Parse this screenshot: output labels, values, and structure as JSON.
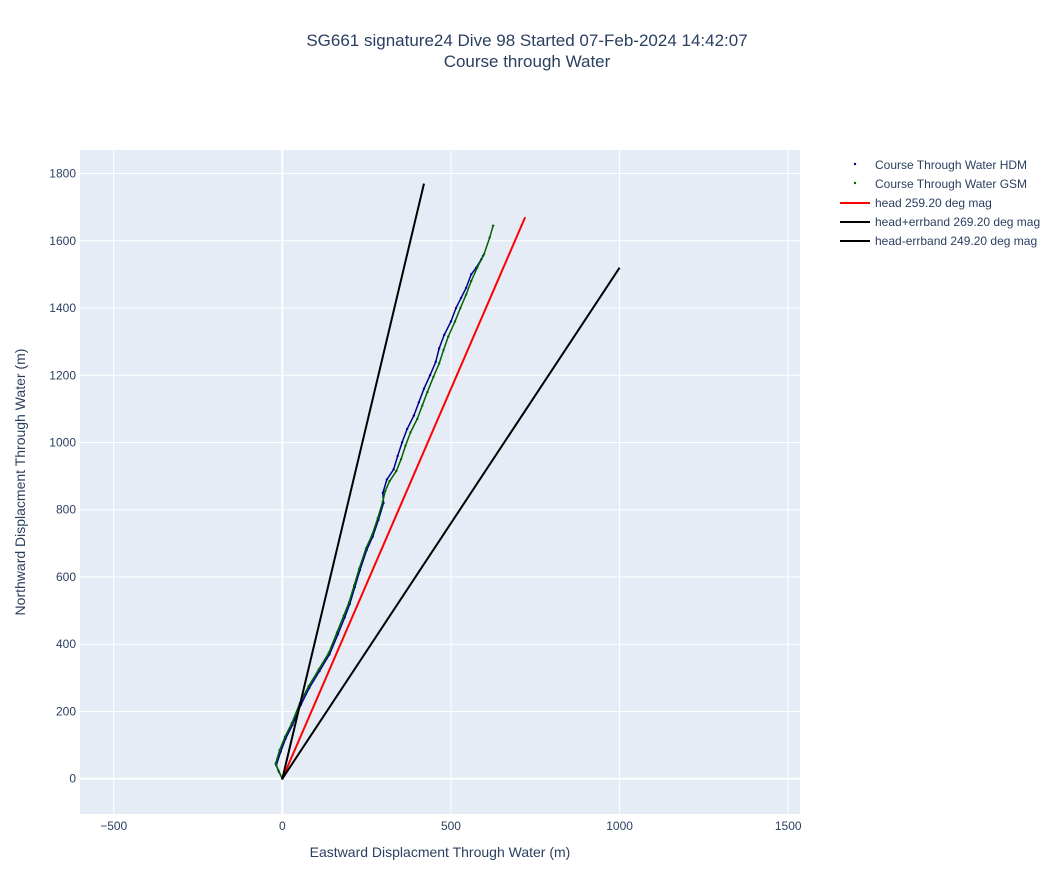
{
  "chart_data": {
    "type": "line",
    "title": [
      "SG661 signature24 Dive 98 Started 07-Feb-2024 14:42:07",
      "Course through Water"
    ],
    "xlabel": "Eastward Displacment Through Water (m)",
    "ylabel": "Northward Displacment Through Water (m)",
    "xlim": [
      -600,
      1535
    ],
    "ylim": [
      -105,
      1870
    ],
    "xticks": [
      -500,
      0,
      500,
      1000,
      1500
    ],
    "xtick_labels": [
      "−500",
      "0",
      "500",
      "1000",
      "1500"
    ],
    "yticks": [
      0,
      200,
      400,
      600,
      800,
      1000,
      1200,
      1400,
      1600,
      1800
    ],
    "ytick_labels": [
      "0",
      "200",
      "400",
      "600",
      "800",
      "1000",
      "1200",
      "1400",
      "1600",
      "1800"
    ],
    "grid": true,
    "legend_position": "top-right",
    "series": [
      {
        "name": "Course Through Water HDM",
        "mode": "markers",
        "color": "#00008b",
        "x": [
          0,
          -10,
          -18,
          -5,
          10,
          30,
          55,
          80,
          110,
          140,
          165,
          185,
          200,
          215,
          230,
          250,
          268,
          285,
          300,
          298,
          310,
          330,
          342,
          355,
          370,
          390,
          405,
          420,
          438,
          455,
          465,
          480,
          500,
          515,
          530,
          545,
          560,
          575,
          590,
          595
        ],
        "y": [
          0,
          20,
          40,
          80,
          120,
          160,
          220,
          270,
          320,
          370,
          430,
          480,
          520,
          570,
          620,
          680,
          720,
          770,
          820,
          850,
          890,
          920,
          960,
          1000,
          1040,
          1080,
          1120,
          1160,
          1200,
          1240,
          1280,
          1320,
          1360,
          1400,
          1430,
          1460,
          1500,
          1520,
          1545,
          1555
        ]
      },
      {
        "name": "Course Through Water GSM",
        "mode": "markers",
        "color": "#006400",
        "x": [
          0,
          -12,
          -20,
          -8,
          8,
          28,
          52,
          78,
          108,
          138,
          162,
          182,
          198,
          213,
          228,
          248,
          266,
          283,
          298,
          305,
          318,
          338,
          352,
          365,
          380,
          400,
          415,
          430,
          448,
          465,
          478,
          492,
          512,
          528,
          545,
          560,
          578,
          598,
          615,
          625
        ],
        "y": [
          0,
          25,
          45,
          85,
          125,
          165,
          225,
          275,
          325,
          375,
          435,
          485,
          525,
          575,
          625,
          685,
          725,
          775,
          825,
          855,
          885,
          915,
          950,
          990,
          1030,
          1070,
          1110,
          1150,
          1195,
          1235,
          1275,
          1315,
          1360,
          1400,
          1440,
          1480,
          1520,
          1560,
          1610,
          1645
        ]
      },
      {
        "name": "head 259.20 deg mag",
        "mode": "lines",
        "color": "#ff0000",
        "x": [
          0,
          720
        ],
        "y": [
          0,
          1670
        ]
      },
      {
        "name": "head+errband 269.20 deg mag",
        "mode": "lines",
        "color": "#000000",
        "x": [
          0,
          420
        ],
        "y": [
          0,
          1770
        ]
      },
      {
        "name": "head-errband 249.20 deg mag",
        "mode": "lines",
        "color": "#000000",
        "x": [
          0,
          1000
        ],
        "y": [
          0,
          1520
        ]
      }
    ]
  },
  "colors": {
    "plot_background": "#e5ecf6",
    "grid": "#ffffff",
    "text": "#2a3f5f"
  }
}
